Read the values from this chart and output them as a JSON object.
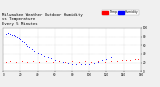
{
  "title_line1": "Milwaukee Weather",
  "title_line2": "Outdoor Humidity",
  "title_line3": "vs Temperature",
  "title_line4": "Every 5 Minutes",
  "title_fontsize": 2.8,
  "background_color": "#f0f0f0",
  "plot_bg_color": "#ffffff",
  "grid_color": "#bbbbbb",
  "blue_color": "#0000ff",
  "red_color": "#ff0000",
  "blue_label": "Humidity",
  "red_label": "Temp",
  "blue_x": [
    3,
    5,
    6,
    8,
    10,
    12,
    14,
    16,
    18,
    20,
    22,
    24,
    26,
    28,
    30,
    33,
    36,
    40,
    44,
    48,
    52,
    56,
    60,
    65,
    70,
    75,
    80,
    85,
    90,
    95,
    100,
    105,
    110,
    115,
    120,
    125
  ],
  "blue_y": [
    85,
    87,
    88,
    86,
    84,
    83,
    82,
    80,
    77,
    74,
    70,
    67,
    63,
    59,
    55,
    51,
    47,
    43,
    39,
    36,
    33,
    30,
    27,
    24,
    22,
    20,
    18,
    17,
    16,
    17,
    18,
    20,
    22,
    25,
    28,
    32
  ],
  "red_x": [
    3,
    8,
    15,
    22,
    28,
    35,
    42,
    50,
    58,
    65,
    72,
    80,
    88,
    95,
    102,
    110,
    118,
    125,
    132,
    138,
    143,
    148,
    153,
    157
  ],
  "red_y": [
    22,
    23,
    22,
    23,
    22,
    23,
    22,
    23,
    22,
    23,
    22,
    23,
    22,
    23,
    22,
    23,
    22,
    23,
    24,
    25,
    26,
    27,
    28,
    29
  ],
  "xlim": [
    0,
    160
  ],
  "ylim": [
    0,
    100
  ],
  "xticks": [
    0,
    20,
    40,
    60,
    80,
    100,
    120,
    140,
    160
  ],
  "yticks": [
    0,
    20,
    40,
    60,
    80,
    100
  ],
  "dot_size": 1.5
}
